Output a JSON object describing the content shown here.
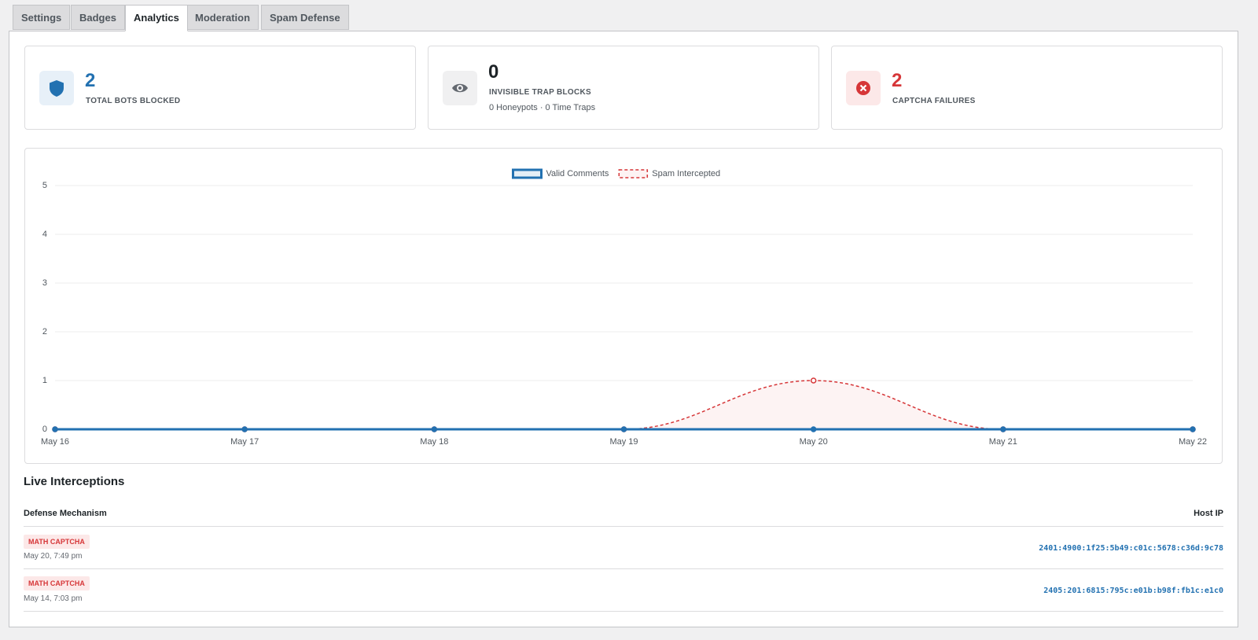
{
  "tabs": [
    "Settings",
    "Badges",
    "Analytics",
    "Moderation",
    "Spam Defense"
  ],
  "stats": [
    {
      "value": "2",
      "label": "TOTAL BOTS BLOCKED"
    },
    {
      "value": "0",
      "label": "INVISIBLE TRAP BLOCKS",
      "note": "0 Honeypots · 0 Time Traps"
    },
    {
      "value": "2",
      "label": "CAPTCHA FAILURES"
    }
  ],
  "chart_data": {
    "type": "line",
    "categories": [
      "May 16",
      "May 17",
      "May 18",
      "May 19",
      "May 20",
      "May 21",
      "May 22"
    ],
    "series": [
      {
        "name": "Valid Comments",
        "color": "#2271b1",
        "values": [
          0,
          0,
          0,
          0,
          0,
          0,
          0
        ]
      },
      {
        "name": "Spam Intercepted",
        "color": "#d63638",
        "values": [
          0,
          0,
          0,
          0,
          1,
          0,
          0
        ]
      }
    ],
    "ylim": [
      0,
      5
    ],
    "yticks": [
      0,
      1,
      2,
      3,
      4,
      5
    ],
    "grid": true,
    "legend": "top"
  },
  "live_interceptions": {
    "title": "Live Interceptions",
    "columns": [
      "Defense Mechanism",
      "Host IP"
    ],
    "rows": [
      {
        "mechanism": "MATH CAPTCHA",
        "time": "May 20, 7:49 pm",
        "ip": "2401:4900:1f25:5b49:c01c:5678:c36d:9c78"
      },
      {
        "mechanism": "MATH CAPTCHA",
        "time": "May 14, 7:03 pm",
        "ip": "2405:201:6815:795c:e01b:b98f:fb1c:e1c0"
      }
    ]
  }
}
